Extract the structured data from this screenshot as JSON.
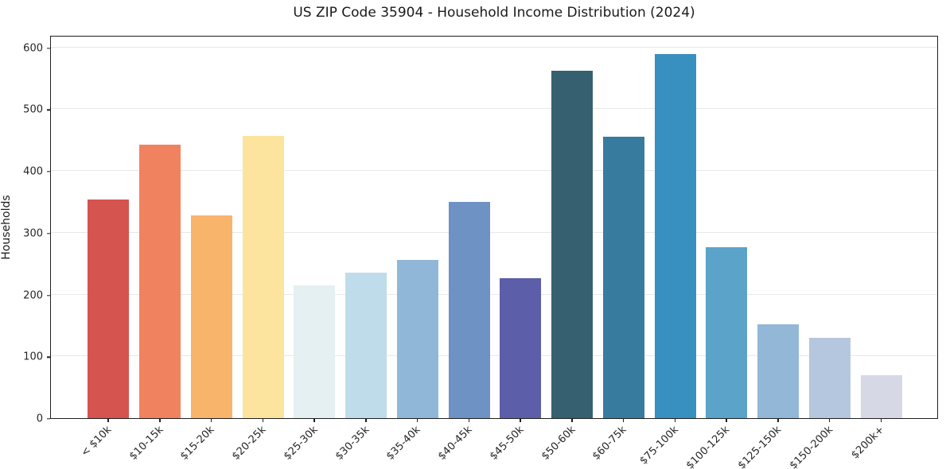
{
  "chart_data": {
    "type": "bar",
    "title": "US ZIP Code 35904 - Household Income Distribution (2024)",
    "xlabel": "",
    "ylabel": "Households",
    "ylim": [
      0,
      620
    ],
    "yticks": [
      0,
      100,
      200,
      300,
      400,
      500,
      600
    ],
    "grid": "horizontal",
    "legend": "none",
    "background": "#ffffff",
    "categories": [
      "< $10k",
      "$10-15k",
      "$15-20k",
      "$20-25k",
      "$25-30k",
      "$30-35k",
      "$35-40k",
      "$40-45k",
      "$45-50k",
      "$50-60k",
      "$60-75k",
      "$75-100k",
      "$100-125k",
      "$125-150k",
      "$150-200k",
      "$200k+"
    ],
    "values": [
      354,
      442,
      328,
      457,
      215,
      235,
      256,
      350,
      226,
      562,
      455,
      589,
      277,
      152,
      130,
      70
    ],
    "bar_colors": [
      "#d5544f",
      "#f0825f",
      "#f9b46b",
      "#fce49e",
      "#e4f0f2",
      "#bfdcea",
      "#90b7d8",
      "#6d92c3",
      "#5c5ea9",
      "#36606f",
      "#377c9e",
      "#3890c0",
      "#5ba3c9",
      "#93b7d6",
      "#b5c7de",
      "#d6d9e5"
    ]
  },
  "style": {
    "grid_color": "#e8e8e8",
    "spine_color": "#1f1f1f",
    "text_color": "#262626"
  }
}
